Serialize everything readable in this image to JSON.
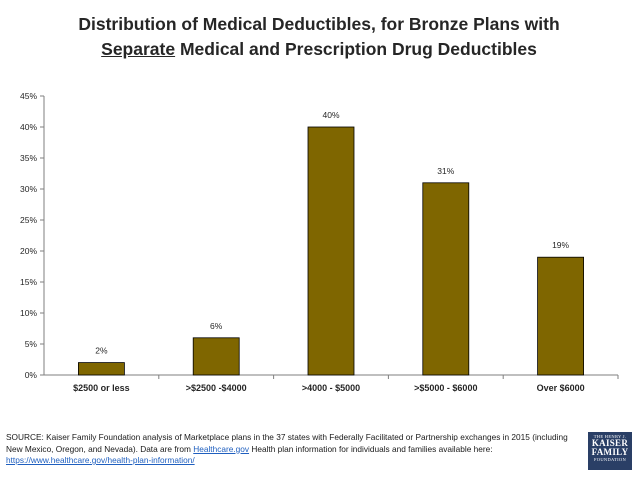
{
  "title": {
    "line1": "Distribution of Medical Deductibles, for Bronze Plans with",
    "line2_underlined": "Separate",
    "line2_rest": " Medical and Prescription Drug Deductibles"
  },
  "chart_data": {
    "type": "bar",
    "categories": [
      "$2500 or less",
      ">$2500 -$4000",
      ">4000 - $5000",
      ">$5000 - $6000",
      "Over $6000"
    ],
    "values": [
      2,
      6,
      40,
      31,
      19
    ],
    "value_labels": [
      "2%",
      "6%",
      "40%",
      "31%",
      "19%"
    ],
    "ylim": [
      0,
      45
    ],
    "yticks": [
      0,
      5,
      10,
      15,
      20,
      25,
      30,
      35,
      40,
      45
    ],
    "ytick_labels": [
      "0%",
      "5%",
      "10%",
      "15%",
      "20%",
      "25%",
      "30%",
      "35%",
      "40%",
      "45%"
    ],
    "bar_color": "#7f6600",
    "xlabel": "",
    "ylabel": "",
    "grid": false
  },
  "source": {
    "text_before_link": "SOURCE: Kaiser Family Foundation analysis of Marketplace plans in the 37 states with Federally Facilitated or Partnership exchanges in 2015 (including New Mexico, Oregon, and Nevada). Data are from ",
    "link1": "Healthcare.gov",
    "text_after_link": " Health plan information for individuals and families available here: ",
    "link2": "https://www.healthcare.gov/health-plan-information/"
  },
  "logo": {
    "line1": "THE HENRY J.",
    "line2": "KAISER",
    "line3": "FAMILY",
    "line4": "FOUNDATION"
  }
}
